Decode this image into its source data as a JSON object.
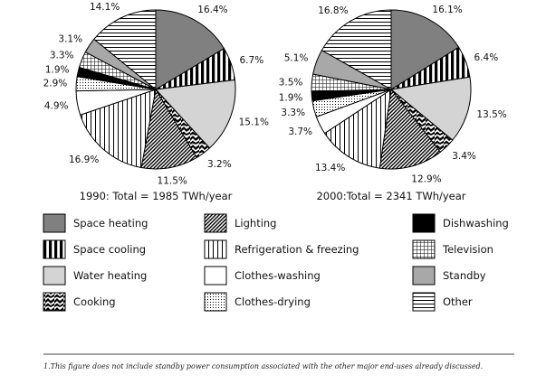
{
  "chart_data": [
    {
      "type": "pie",
      "caption": "1990: Total = 1985 TWh/year",
      "slices": [
        {
          "category": "Space heating",
          "value": 16.4,
          "label": "16.4%"
        },
        {
          "category": "Space cooling",
          "value": 6.7,
          "label": "6.7%"
        },
        {
          "category": "Water heating",
          "value": 15.1,
          "label": "15.1%"
        },
        {
          "category": "Cooking",
          "value": 3.2,
          "label": "3.2%"
        },
        {
          "category": "Lighting",
          "value": 11.5,
          "label": "11.5%"
        },
        {
          "category": "Refrigeration & freezing",
          "value": 16.9,
          "label": "16.9%"
        },
        {
          "category": "Clothes-washing",
          "value": 4.9,
          "label": "4.9%"
        },
        {
          "category": "Clothes-drying",
          "value": 2.9,
          "label": "2.9%"
        },
        {
          "category": "Dishwashing",
          "value": 1.9,
          "label": "1.9%"
        },
        {
          "category": "Television",
          "value": 3.3,
          "label": "3.3%"
        },
        {
          "category": "Standby",
          "value": 3.1,
          "label": "3.1%"
        },
        {
          "category": "Other",
          "value": 14.1,
          "label": "14.1%"
        }
      ]
    },
    {
      "type": "pie",
      "caption": "2000:Total = 2341 TWh/year",
      "slices": [
        {
          "category": "Space heating",
          "value": 16.1,
          "label": "16.1%"
        },
        {
          "category": "Space cooling",
          "value": 6.4,
          "label": "6.4%"
        },
        {
          "category": "Water heating",
          "value": 13.5,
          "label": "13.5%"
        },
        {
          "category": "Cooking",
          "value": 3.4,
          "label": "3.4%"
        },
        {
          "category": "Lighting",
          "value": 12.9,
          "label": "12.9%"
        },
        {
          "category": "Refrigeration & freezing",
          "value": 13.4,
          "label": "13.4%"
        },
        {
          "category": "Clothes-washing",
          "value": 3.7,
          "label": "3.7%"
        },
        {
          "category": "Clothes-drying",
          "value": 3.3,
          "label": "3.3%"
        },
        {
          "category": "Dishwashing",
          "value": 1.9,
          "label": "1.9%"
        },
        {
          "category": "Television",
          "value": 3.5,
          "label": "3.5%"
        },
        {
          "category": "Standby",
          "value": 5.1,
          "label": "5.1%"
        },
        {
          "category": "Other",
          "value": 16.8,
          "label": "16.8%"
        }
      ]
    }
  ],
  "legend": [
    {
      "label": "Space heating",
      "pattern": "dark-gray"
    },
    {
      "label": "Space cooling",
      "pattern": "thick-vertical-stripes"
    },
    {
      "label": "Water heating",
      "pattern": "light-gray"
    },
    {
      "label": "Cooking",
      "pattern": "black-white-zigzag"
    },
    {
      "label": "Lighting",
      "pattern": "diagonal-hatch"
    },
    {
      "label": "Refrigeration & freezing",
      "pattern": "thin-vertical-stripes"
    },
    {
      "label": "Clothes-washing",
      "pattern": "white"
    },
    {
      "label": "Clothes-drying",
      "pattern": "dotted"
    },
    {
      "label": "Dishwashing",
      "pattern": "black"
    },
    {
      "label": "Television",
      "pattern": "grid"
    },
    {
      "label": "Standby",
      "pattern": "medium-gray"
    },
    {
      "label": "Other",
      "pattern": "horizontal-stripes"
    }
  ],
  "footnote": "1.This figure does not include standby power consumption associated with the other major end-uses already discussed."
}
